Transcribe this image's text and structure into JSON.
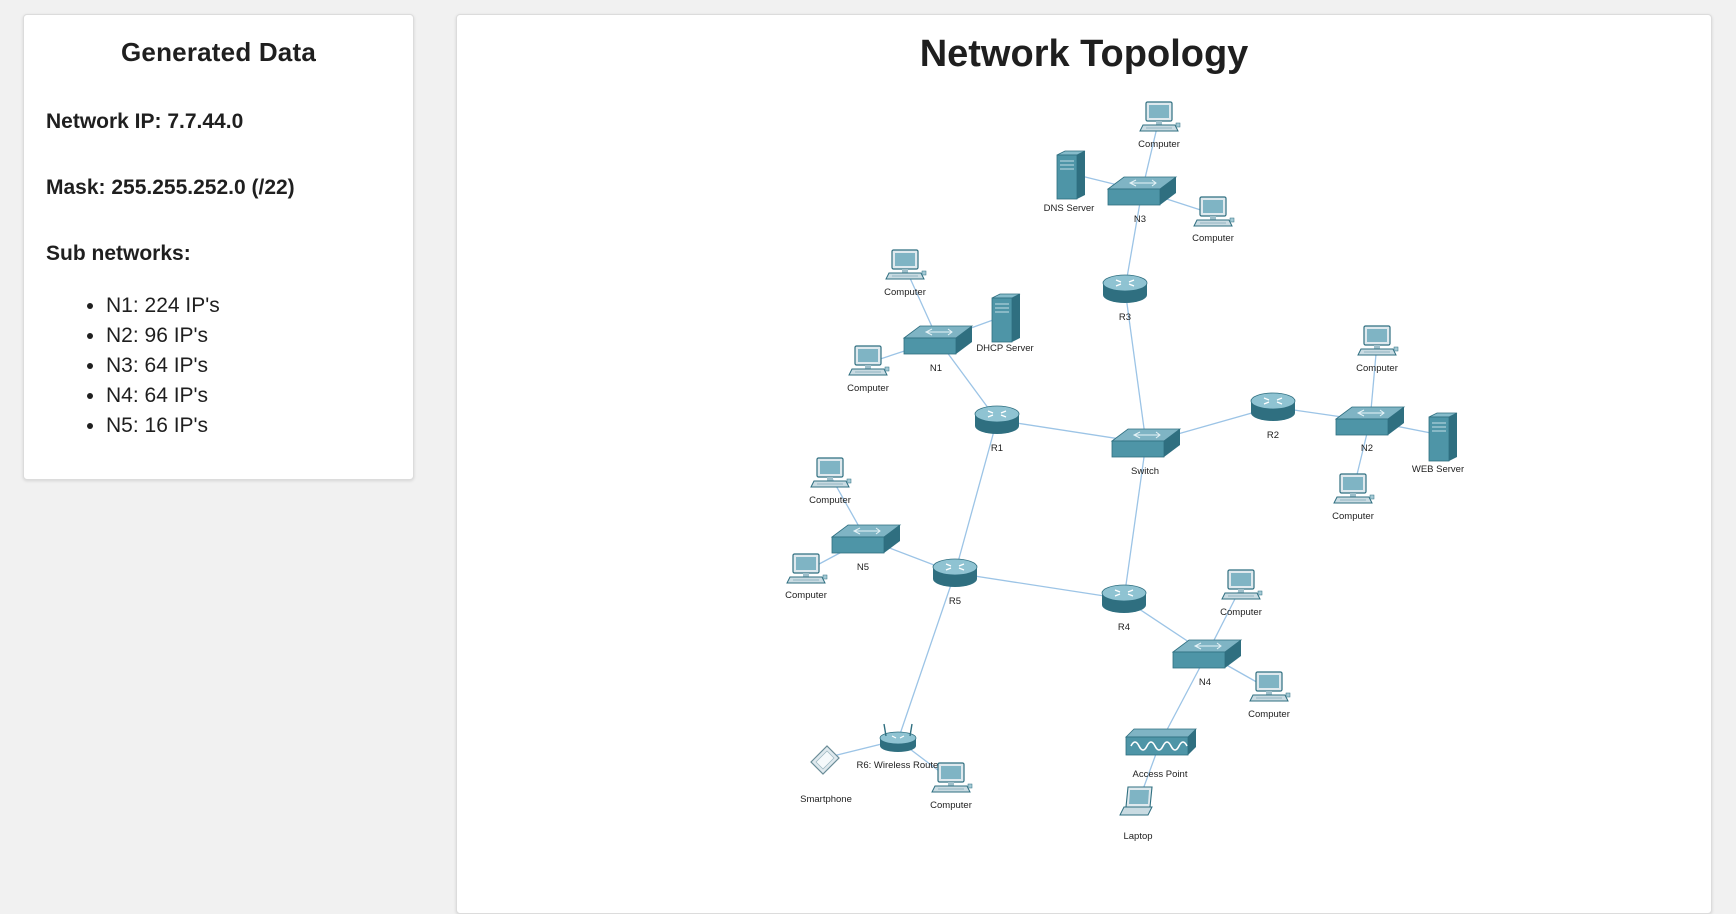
{
  "left_panel": {
    "title": "Generated Data",
    "network_ip_label": "Network IP: 7.7.44.0",
    "mask_label": "Mask: 255.255.252.0 (/22)",
    "subnets_heading": "Sub networks:",
    "subnets": [
      "N1: 224 IP's",
      "N2: 96 IP's",
      "N3: 64 IP's",
      "N4: 64 IP's",
      "N5: 16 IP's"
    ]
  },
  "topology": {
    "title": "Network Topology",
    "colors": {
      "device": "#4e95a7",
      "device_dark": "#2f6f80",
      "link": "#9cc4e6"
    },
    "nodes": [
      {
        "id": "n3_pc1",
        "type": "computer",
        "label": "Computer"
      },
      {
        "id": "dns",
        "type": "server",
        "label": "DNS Server"
      },
      {
        "id": "n3",
        "type": "switch",
        "label": "N3"
      },
      {
        "id": "n3_pc2",
        "type": "computer",
        "label": "Computer"
      },
      {
        "id": "r3",
        "type": "router",
        "label": "R3"
      },
      {
        "id": "n1_pc1",
        "type": "computer",
        "label": "Computer"
      },
      {
        "id": "dhcp",
        "type": "server",
        "label": "DHCP Server"
      },
      {
        "id": "n1",
        "type": "switch",
        "label": "N1"
      },
      {
        "id": "n1_pc2",
        "type": "computer",
        "label": "Computer"
      },
      {
        "id": "r1",
        "type": "router",
        "label": "R1"
      },
      {
        "id": "core",
        "type": "switch",
        "label": "Switch"
      },
      {
        "id": "r2",
        "type": "router",
        "label": "R2"
      },
      {
        "id": "n2",
        "type": "switch",
        "label": "N2"
      },
      {
        "id": "n2_pc1",
        "type": "computer",
        "label": "Computer"
      },
      {
        "id": "web",
        "type": "server",
        "label": "WEB Server"
      },
      {
        "id": "n2_pc2",
        "type": "computer",
        "label": "Computer"
      },
      {
        "id": "n5_pc1",
        "type": "computer",
        "label": "Computer"
      },
      {
        "id": "n5",
        "type": "switch",
        "label": "N5"
      },
      {
        "id": "n5_pc2",
        "type": "computer",
        "label": "Computer"
      },
      {
        "id": "r5",
        "type": "router",
        "label": "R5"
      },
      {
        "id": "r4",
        "type": "router",
        "label": "R4"
      },
      {
        "id": "n4_pc1",
        "type": "computer",
        "label": "Computer"
      },
      {
        "id": "n4",
        "type": "switch",
        "label": "N4"
      },
      {
        "id": "n4_pc2",
        "type": "computer",
        "label": "Computer"
      },
      {
        "id": "ap",
        "type": "accesspoint",
        "label": "Access Point"
      },
      {
        "id": "laptop",
        "type": "laptop",
        "label": "Laptop"
      },
      {
        "id": "r6",
        "type": "wireless",
        "label": "R6: Wireless Router"
      },
      {
        "id": "phone",
        "type": "smartphone",
        "label": "Smartphone"
      },
      {
        "id": "r6_pc",
        "type": "computer",
        "label": "Computer"
      }
    ],
    "links": [
      [
        "n3_pc1",
        "n3"
      ],
      [
        "dns",
        "n3"
      ],
      [
        "n3",
        "n3_pc2"
      ],
      [
        "n3",
        "r3"
      ],
      [
        "r3",
        "core"
      ],
      [
        "n1_pc1",
        "n1"
      ],
      [
        "dhcp",
        "n1"
      ],
      [
        "n1_pc2",
        "n1"
      ],
      [
        "n1",
        "r1"
      ],
      [
        "r1",
        "core"
      ],
      [
        "core",
        "r2"
      ],
      [
        "r2",
        "n2"
      ],
      [
        "n2",
        "n2_pc1"
      ],
      [
        "n2",
        "web"
      ],
      [
        "n2",
        "n2_pc2"
      ],
      [
        "r1",
        "r5"
      ],
      [
        "n5_pc1",
        "n5"
      ],
      [
        "n5_pc2",
        "n5"
      ],
      [
        "n5",
        "r5"
      ],
      [
        "r5",
        "r4"
      ],
      [
        "core",
        "r4"
      ],
      [
        "r4",
        "n4"
      ],
      [
        "n4",
        "n4_pc1"
      ],
      [
        "n4",
        "n4_pc2"
      ],
      [
        "n4",
        "ap"
      ],
      [
        "ap",
        "laptop"
      ],
      [
        "r5",
        "r6"
      ],
      [
        "r6",
        "phone"
      ],
      [
        "r6",
        "r6_pc"
      ]
    ]
  }
}
